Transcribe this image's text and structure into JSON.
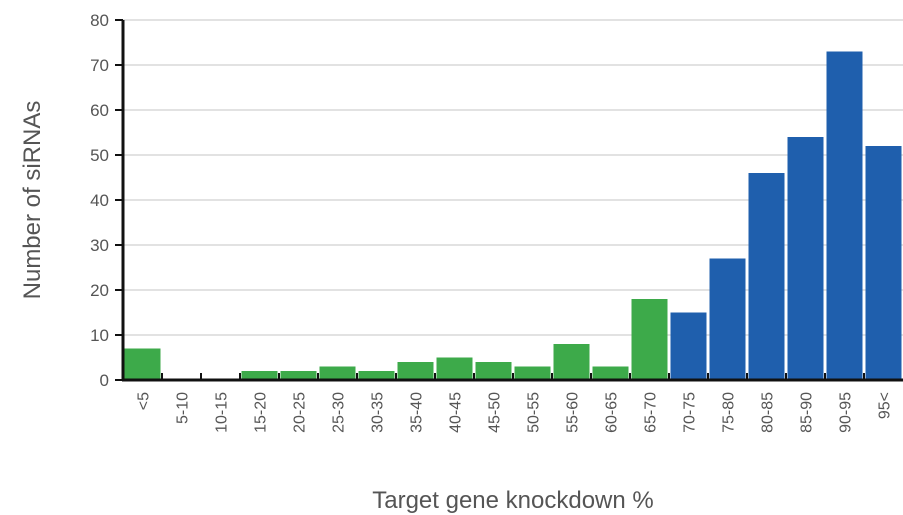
{
  "chart_data": {
    "type": "bar",
    "xlabel": "Target gene knockdown %",
    "ylabel": "Number of siRNAs",
    "ylim": [
      0,
      80
    ],
    "yticks": [
      0,
      10,
      20,
      30,
      40,
      50,
      60,
      70,
      80
    ],
    "grid": true,
    "categories": [
      "<5",
      "5-10",
      "10-15",
      "15-20",
      "20-25",
      "25-30",
      "30-35",
      "35-40",
      "40-45",
      "45-50",
      "50-55",
      "55-60",
      "60-65",
      "65-70",
      "70-75",
      "75-80",
      "80-85",
      "85-90",
      "90-95",
      "95<"
    ],
    "values": [
      7,
      0,
      0,
      2,
      2,
      3,
      2,
      4,
      5,
      4,
      3,
      8,
      3,
      18,
      15,
      27,
      46,
      54,
      73,
      52
    ],
    "colors": [
      "#3daa4a",
      "#3daa4a",
      "#3daa4a",
      "#3daa4a",
      "#3daa4a",
      "#3daa4a",
      "#3daa4a",
      "#3daa4a",
      "#3daa4a",
      "#3daa4a",
      "#3daa4a",
      "#3daa4a",
      "#3daa4a",
      "#3daa4a",
      "#1f5fad",
      "#1f5fad",
      "#1f5fad",
      "#1f5fad",
      "#1f5fad",
      "#1f5fad"
    ]
  }
}
